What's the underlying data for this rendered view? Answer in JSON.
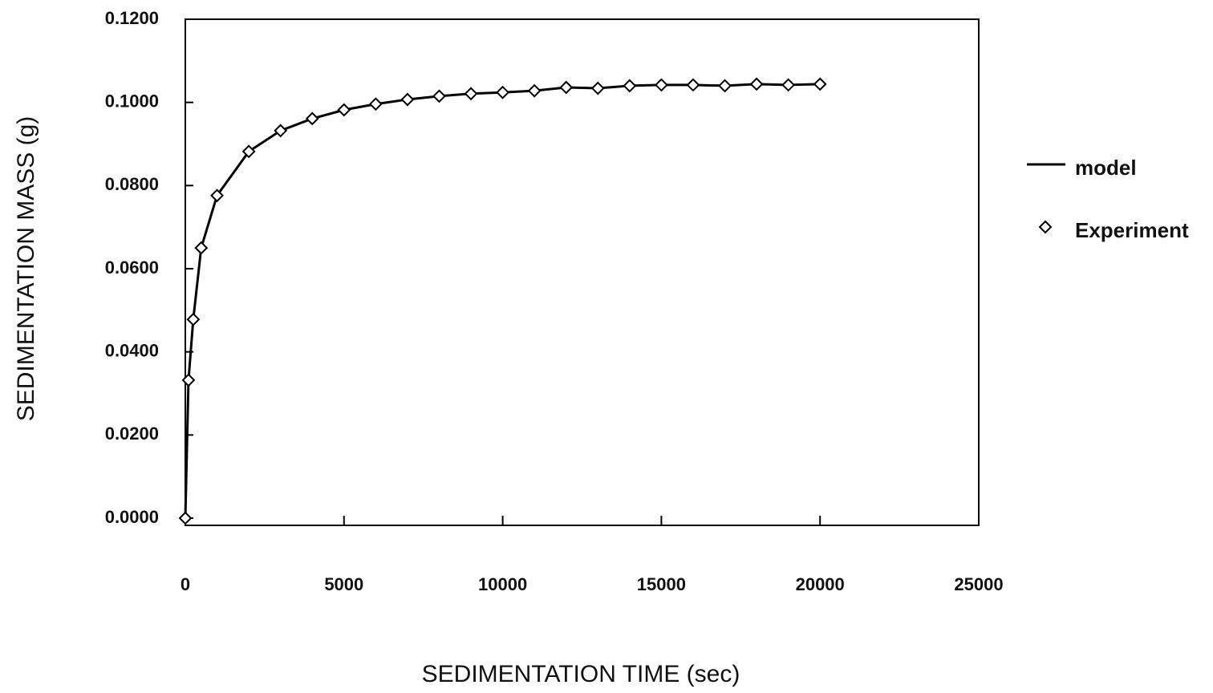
{
  "chart_data": {
    "type": "line",
    "xlabel": "SEDIMENTATION TIME (sec)",
    "ylabel": "SEDIMENTATION MASS (g)",
    "x": [
      0,
      100,
      250,
      500,
      1000,
      2000,
      3000,
      4000,
      5000,
      6000,
      7000,
      8000,
      9000,
      10000,
      11000,
      12000,
      13000,
      14000,
      15000,
      16000,
      17000,
      18000,
      19000,
      20000
    ],
    "series": [
      {
        "name": "model",
        "color": "#000000",
        "style": "line",
        "values": [
          0,
          0.0332,
          0.0478,
          0.065,
          0.0776,
          0.0882,
          0.0932,
          0.0961,
          0.0982,
          0.0996,
          0.1007,
          0.1015,
          0.1021,
          0.1024,
          0.1028,
          0.1036,
          0.1034,
          0.104,
          0.1042,
          0.1042,
          0.104,
          0.1044,
          0.1042,
          0.1044
        ]
      },
      {
        "name": "Experiment",
        "color": "#000000",
        "style": "diamond",
        "values": [
          0,
          0.0332,
          0.0478,
          0.065,
          0.0776,
          0.0882,
          0.0932,
          0.0961,
          0.0982,
          0.0996,
          0.1007,
          0.1015,
          0.1021,
          0.1024,
          0.1028,
          0.1036,
          0.1034,
          0.104,
          0.1042,
          0.1042,
          0.104,
          0.1044,
          0.1042,
          0.1044
        ]
      }
    ],
    "xlim": [
      0,
      25000
    ],
    "xticks": [
      0,
      5000,
      10000,
      15000,
      20000,
      25000
    ],
    "ylim": [
      0,
      0.12
    ],
    "yticks": [
      {
        "value": 0,
        "label": "0.0000"
      },
      {
        "value": 0.02,
        "label": "0.0200"
      },
      {
        "value": 0.04,
        "label": "0.0400"
      },
      {
        "value": 0.06,
        "label": "0.0600"
      },
      {
        "value": 0.08,
        "label": "0.0800"
      },
      {
        "value": 0.1,
        "label": "0.1000"
      },
      {
        "value": 0.12,
        "label": "0.1200"
      }
    ],
    "legend": "right"
  }
}
